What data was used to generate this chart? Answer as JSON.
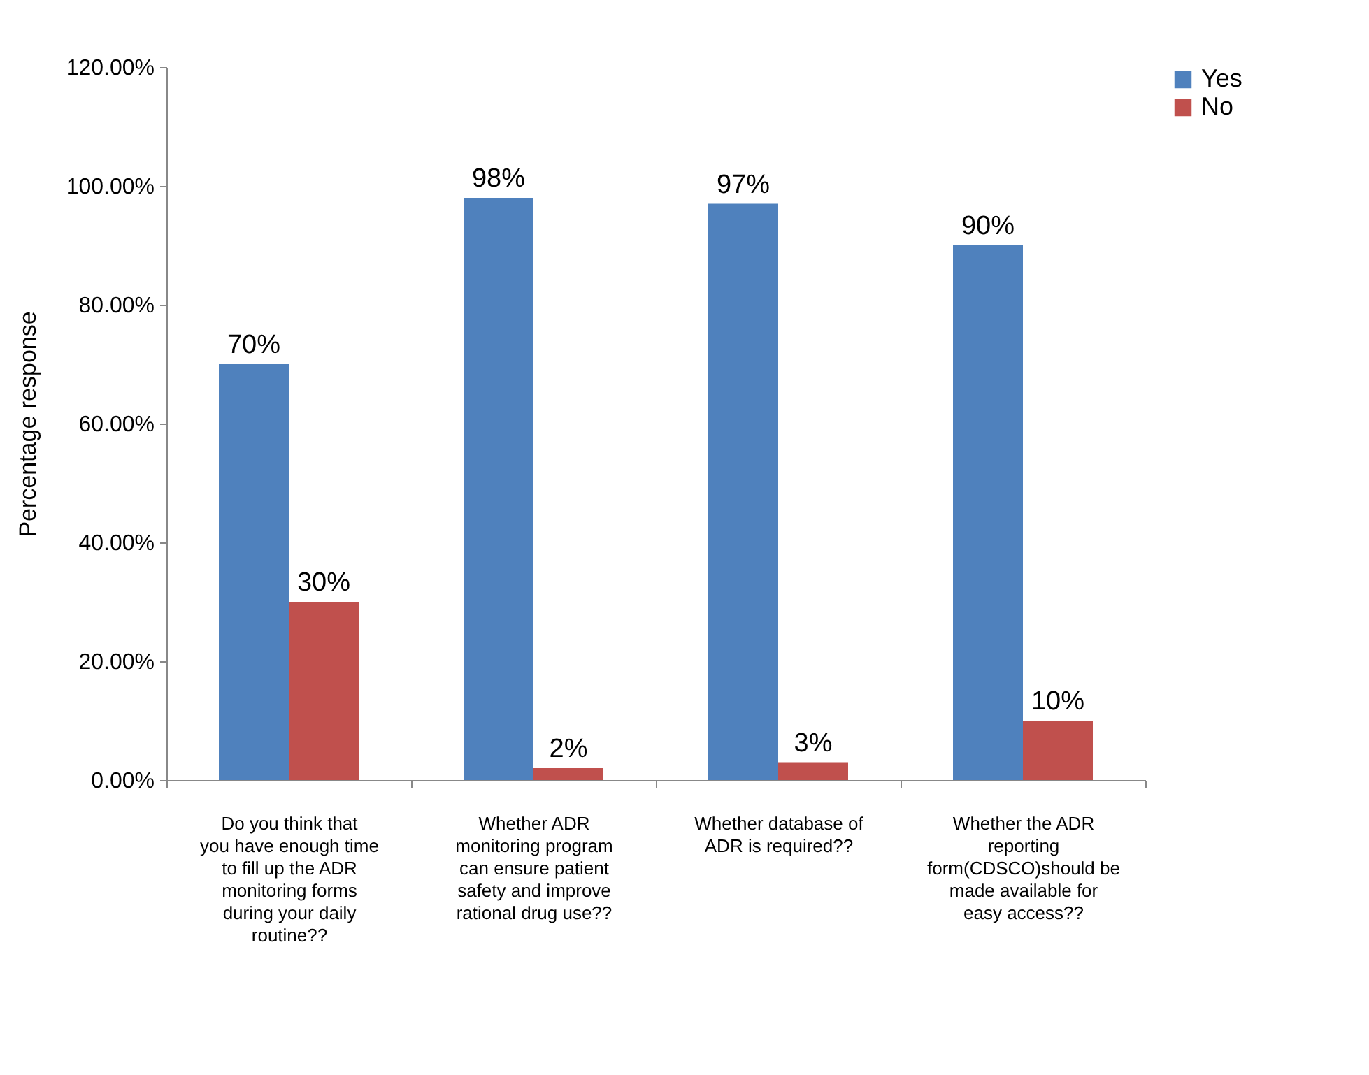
{
  "chart_data": {
    "type": "bar",
    "ylabel": "Percentage response",
    "categories": [
      "Do you think that you have enough time to fill up the ADR monitoring forms during your daily routine??",
      "Whether ADR monitoring program can ensure patient safety and improve rational drug use??",
      "Whether database of ADR is required??",
      "Whether the ADR reporting form(CDSCO)should be made available for easy access??"
    ],
    "series": [
      {
        "name": "Yes",
        "color": "#4f81bd",
        "values": [
          70,
          98,
          97,
          90
        ],
        "value_labels": [
          "70%",
          "98%",
          "97%",
          "90%"
        ]
      },
      {
        "name": "No",
        "color": "#c0504d",
        "values": [
          30,
          2,
          3,
          10
        ],
        "value_labels": [
          "30%",
          "2%",
          "3%",
          "10%"
        ]
      }
    ],
    "ylim": [
      0,
      120
    ],
    "yticks": [
      {
        "value": 0,
        "label": "0.00%"
      },
      {
        "value": 20,
        "label": "20.00%"
      },
      {
        "value": 40,
        "label": "40.00%"
      },
      {
        "value": 60,
        "label": "60.00%"
      },
      {
        "value": 80,
        "label": "80.00%"
      },
      {
        "value": 100,
        "label": "100.00%"
      },
      {
        "value": 120,
        "label": "120.00%"
      }
    ],
    "grid": false,
    "legend": "right"
  }
}
